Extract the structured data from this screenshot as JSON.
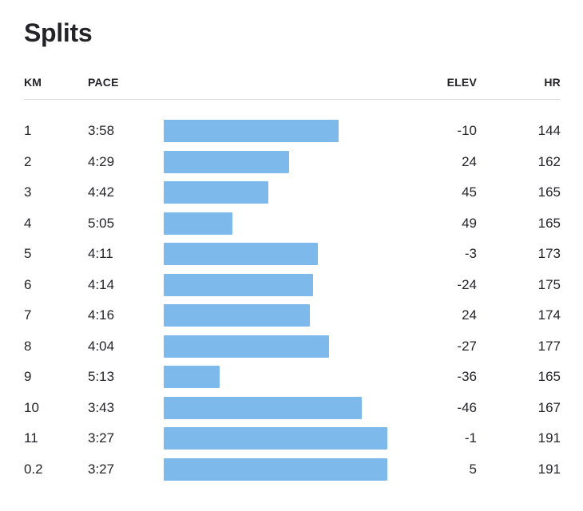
{
  "chart_data": {
    "type": "table",
    "title": "Splits",
    "columns": [
      "KM",
      "PACE",
      "ELEV",
      "HR"
    ],
    "bar_column": "PACE",
    "bar_color": "#7db9ea",
    "bar_note": "horizontal bar length proportional to pace; faster pace = longer bar",
    "rows": [
      {
        "km": "1",
        "pace": "3:58",
        "elev": "-10",
        "hr": "144"
      },
      {
        "km": "2",
        "pace": "4:29",
        "elev": "24",
        "hr": "162"
      },
      {
        "km": "3",
        "pace": "4:42",
        "elev": "45",
        "hr": "165"
      },
      {
        "km": "4",
        "pace": "5:05",
        "elev": "49",
        "hr": "165"
      },
      {
        "km": "5",
        "pace": "4:11",
        "elev": "-3",
        "hr": "173"
      },
      {
        "km": "6",
        "pace": "4:14",
        "elev": "-24",
        "hr": "175"
      },
      {
        "km": "7",
        "pace": "4:16",
        "elev": "24",
        "hr": "174"
      },
      {
        "km": "8",
        "pace": "4:04",
        "elev": "-27",
        "hr": "177"
      },
      {
        "km": "9",
        "pace": "5:13",
        "elev": "-36",
        "hr": "165"
      },
      {
        "km": "10",
        "pace": "3:43",
        "elev": "-46",
        "hr": "167"
      },
      {
        "km": "11",
        "pace": "3:27",
        "elev": "-1",
        "hr": "191"
      },
      {
        "km": "0.2",
        "pace": "3:27",
        "elev": "5",
        "hr": "191"
      }
    ]
  }
}
